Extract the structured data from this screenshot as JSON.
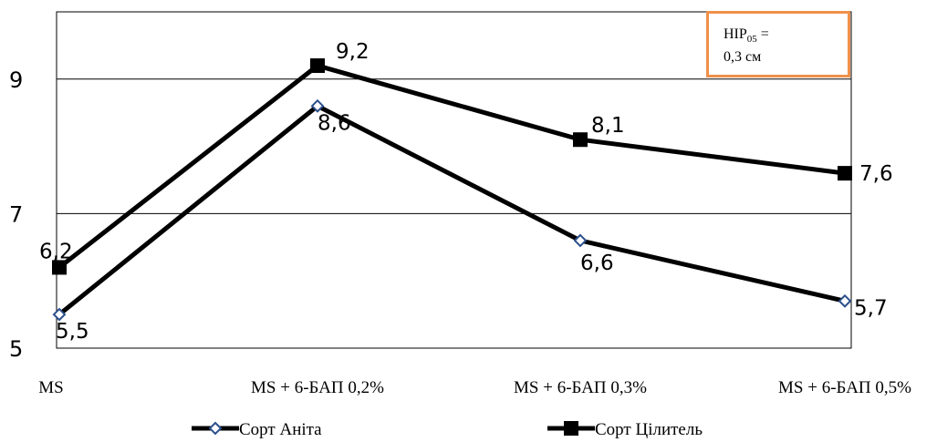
{
  "chart_data": {
    "type": "line",
    "categories": [
      "MS",
      "MS + 6-БАП 0,2%",
      "MS + 6-БАП 0,3%",
      "MS + 6-БАП 0,5%"
    ],
    "series": [
      {
        "name": "Сорт Аніта",
        "values": [
          5.5,
          8.6,
          6.6,
          5.7
        ],
        "labels": [
          "5,5",
          "8,6",
          "6,6",
          "5,7"
        ],
        "marker": "diamond",
        "color": "#000000",
        "marker_fill": "#ffffff",
        "marker_stroke": "#2b4f8c"
      },
      {
        "name": "Сорт Цілитель",
        "values": [
          6.2,
          9.2,
          8.1,
          7.6
        ],
        "labels": [
          "6,2",
          "9,2",
          "8,1",
          "7,6"
        ],
        "marker": "square",
        "color": "#000000"
      }
    ],
    "ylim": [
      5,
      10
    ],
    "yticks": [
      "5",
      "7",
      "9"
    ],
    "grid": true,
    "legend_position": "bottom",
    "annotation": {
      "main": "HIP",
      "sub": "05",
      "suffix": " =",
      "line2": "0,3 см",
      "border_color": "#f0904a"
    }
  }
}
